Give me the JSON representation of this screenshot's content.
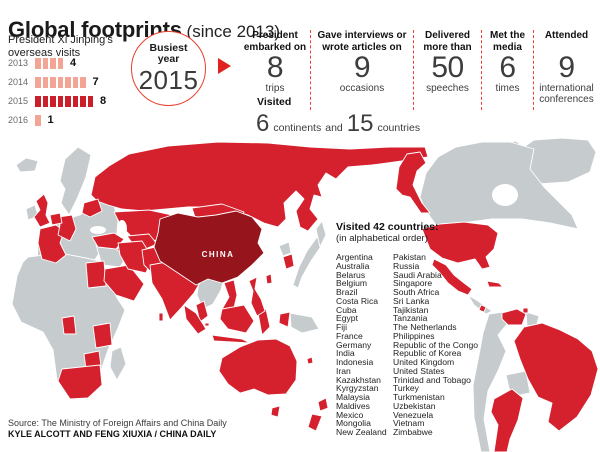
{
  "header": {
    "title": "Global footprints",
    "subtitle": " (since 2013)"
  },
  "intro": {
    "line1": "President Xi Jinping's",
    "line2": "overseas visits"
  },
  "chart_data": {
    "type": "bar",
    "categories": [
      "2013",
      "2014",
      "2015",
      "2016"
    ],
    "values": [
      4,
      7,
      8,
      1
    ],
    "title": "President Xi Jinping's overseas visits",
    "highlight_category": "2015"
  },
  "visits_chart": {
    "rows": [
      {
        "year": "2013",
        "value": 4,
        "highlight": false
      },
      {
        "year": "2014",
        "value": 7,
        "highlight": false
      },
      {
        "year": "2015",
        "value": 8,
        "highlight": true
      },
      {
        "year": "2016",
        "value": 1,
        "highlight": false
      }
    ]
  },
  "busiest": {
    "line1": "Busiest",
    "line2": "year",
    "year": "2015"
  },
  "stats": [
    {
      "h1": "President",
      "h2": "embarked on",
      "value": "8",
      "l1": "trips",
      "l2": ""
    },
    {
      "h1": "Gave interviews or",
      "h2": "wrote articles on",
      "value": "9",
      "l1": "occasions",
      "l2": ""
    },
    {
      "h1": "Delivered",
      "h2": "more than",
      "value": "50",
      "l1": "speeches",
      "l2": ""
    },
    {
      "h1": "Met the",
      "h2": "media",
      "value": "6",
      "l1": "times",
      "l2": ""
    },
    {
      "h1": "Attended",
      "h2": "",
      "value": "9",
      "l1": "international",
      "l2": "conferences"
    }
  ],
  "visited": {
    "label": "Visited",
    "num1": "6",
    "text1": "continents",
    "conj": "and",
    "num2": "15",
    "text2": "countries"
  },
  "map": {
    "china_label": "CHINA"
  },
  "countries": {
    "title": "Visited 42 countries:",
    "subtitle": "(in alphabetical order)",
    "col1": [
      "Argentina",
      "Australia",
      "Belarus",
      "Belgium",
      "Brazil",
      "Costa Rica",
      "Cuba",
      "Egypt",
      "Fiji",
      "France",
      "Germany",
      "India",
      "Indonesia",
      "Iran",
      "Kazakhstan",
      "Kyrgyzstan",
      "Malaysia",
      "Maldives",
      "Mexico",
      "Mongolia",
      "New Zealand"
    ],
    "col2": [
      "Pakistan",
      "Russia",
      "Saudi Arabia",
      "Singapore",
      "South Africa",
      "Sri Lanka",
      "Tajikistan",
      "Tanzania",
      "The Netherlands",
      "Philippines",
      "Republic of the Congo",
      "Republic of Korea",
      "United Kingdom",
      "United States",
      "Trinidad and Tobago",
      "Turkey",
      "Turkmenistan",
      "Uzbekistan",
      "Venezuela",
      "Vietnam",
      "Zimbabwe"
    ],
    "count": 42
  },
  "footer": {
    "source": "Source: The Ministry of Foreign Affairs and China Daily",
    "credit": "KYLE ALCOTT AND FENG XIUXIA / CHINA DAILY"
  },
  "palette": {
    "accent_red": "#e8402d",
    "map_red": "#d5202d",
    "map_gray": "#c6cbce",
    "china_dark": "#96141c",
    "bar_light": "#f2a595",
    "bar_dark": "#c9202b"
  }
}
